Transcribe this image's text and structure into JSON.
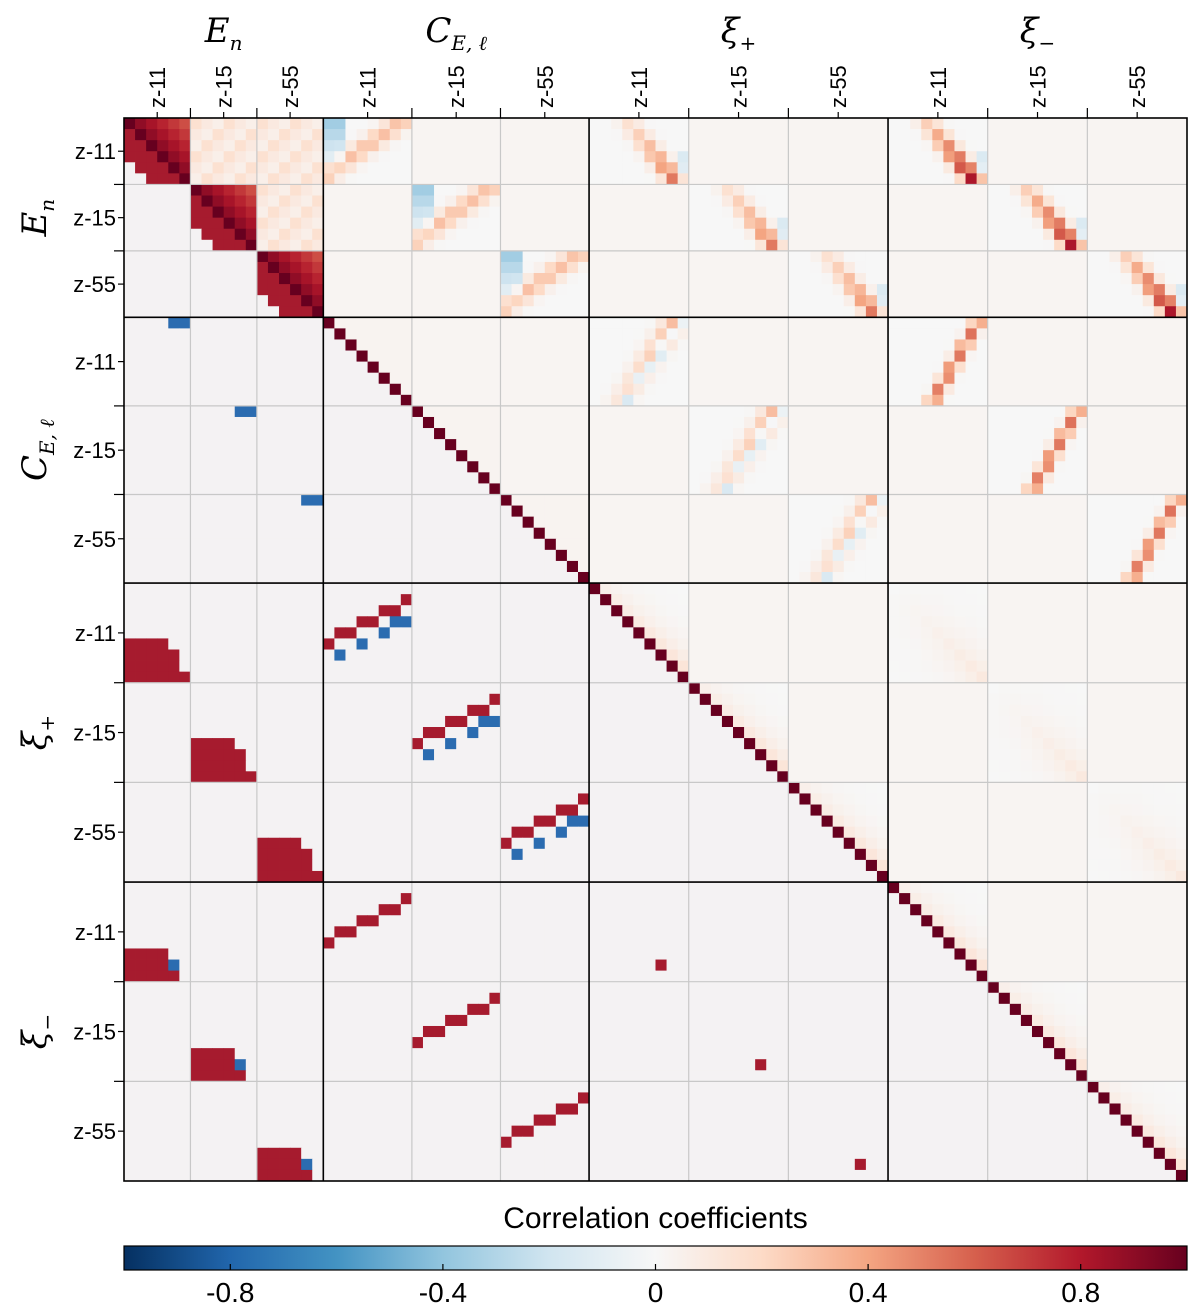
{
  "chart_data": {
    "type": "heatmap",
    "title": "",
    "statistic_groups": [
      {
        "key": "En",
        "label_main": "E",
        "label_sub": "n",
        "bins": 6
      },
      {
        "key": "CEl",
        "label_main": "C",
        "label_sub": "E, ℓ",
        "bins": 8
      },
      {
        "key": "xi_plus",
        "label_main": "ξ",
        "label_sub": "+",
        "bins": 9
      },
      {
        "key": "xi_minus",
        "label_main": "ξ",
        "label_sub": "−",
        "bins": 9
      }
    ],
    "redshift_pairs": [
      "z-11",
      "z-15",
      "z-55"
    ],
    "upper_triangle": "correlation coefficients (continuous)",
    "lower_triangle": "thresholded correlation coefficients (|r| > 0.5 shown)",
    "colorbar": {
      "label": "Correlation coefficients",
      "range": [
        -1,
        1
      ],
      "ticks": [
        -0.8,
        -0.4,
        0,
        0.4,
        0.8
      ],
      "tick_labels": [
        "-0.8",
        "-0.4",
        "0",
        "0.4",
        "0.8"
      ],
      "colormap": "RdBu_r",
      "stops": [
        "#053061",
        "#2166ac",
        "#4393c3",
        "#92c5de",
        "#d1e5f0",
        "#f7f7f7",
        "#fddbc7",
        "#f4a582",
        "#d6604d",
        "#b2182b",
        "#67001f"
      ]
    },
    "colors": {
      "background": "#f4f2f3",
      "strong_positive": "#a61b2e",
      "strong_negative": "#2b6cb0",
      "diagonal": "#67001f",
      "grid": "#c8c8c8",
      "border": "#000000"
    }
  }
}
